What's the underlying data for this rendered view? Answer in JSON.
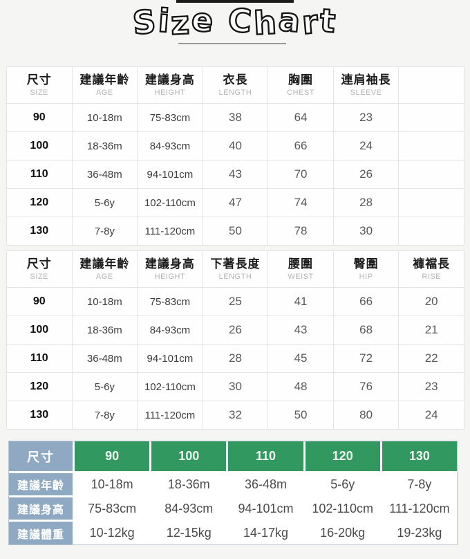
{
  "title": {
    "text": "Size Chart"
  },
  "size_table_top": {
    "headers": [
      {
        "zh": "尺寸",
        "en": "SIZE"
      },
      {
        "zh": "建議年齡",
        "en": "AGE"
      },
      {
        "zh": "建議身高",
        "en": "HEIGHT"
      },
      {
        "zh": "衣長",
        "en": "LENGTH"
      },
      {
        "zh": "胸圍",
        "en": "CHEST"
      },
      {
        "zh": "連肩袖長",
        "en": "SLEEVE"
      },
      {
        "zh": "",
        "en": ""
      }
    ],
    "rows": [
      [
        "90",
        "10-18m",
        "75-83cm",
        "38",
        "64",
        "23",
        ""
      ],
      [
        "100",
        "18-36m",
        "84-93cm",
        "40",
        "66",
        "24",
        ""
      ],
      [
        "110",
        "36-48m",
        "94-101cm",
        "43",
        "70",
        "26",
        ""
      ],
      [
        "120",
        "5-6y",
        "102-110cm",
        "47",
        "74",
        "28",
        ""
      ],
      [
        "130",
        "7-8y",
        "111-120cm",
        "50",
        "78",
        "30",
        ""
      ]
    ]
  },
  "size_table_bottom": {
    "headers": [
      {
        "zh": "尺寸",
        "en": "SIZE"
      },
      {
        "zh": "建議年齡",
        "en": "AGE"
      },
      {
        "zh": "建議身高",
        "en": "HEIGHT"
      },
      {
        "zh": "下著長度",
        "en": "LENGTH"
      },
      {
        "zh": "腰圍",
        "en": "WEIST"
      },
      {
        "zh": "臀圍",
        "en": "HIP"
      },
      {
        "zh": "褲襠長",
        "en": "RISE"
      }
    ],
    "rows": [
      [
        "90",
        "10-18m",
        "75-83cm",
        "25",
        "41",
        "66",
        "20"
      ],
      [
        "100",
        "18-36m",
        "84-93cm",
        "26",
        "43",
        "68",
        "21"
      ],
      [
        "110",
        "36-48m",
        "94-101cm",
        "28",
        "45",
        "72",
        "22"
      ],
      [
        "120",
        "5-6y",
        "102-110cm",
        "30",
        "48",
        "76",
        "23"
      ],
      [
        "130",
        "7-8y",
        "111-120cm",
        "32",
        "50",
        "80",
        "24"
      ]
    ]
  },
  "summary_table": {
    "corner_label": "尺寸",
    "sizes": [
      "90",
      "100",
      "110",
      "120",
      "130"
    ],
    "rows": [
      {
        "label": "建議年齡",
        "values": [
          "10-18m",
          "18-36m",
          "36-48m",
          "5-6y",
          "7-8y"
        ]
      },
      {
        "label": "建議身高",
        "values": [
          "75-83cm",
          "84-93cm",
          "94-101cm",
          "102-110cm",
          "111-120cm"
        ]
      },
      {
        "label": "建議體重",
        "values": [
          "10-12kg",
          "12-15kg",
          "14-17kg",
          "16-20kg",
          "19-23kg"
        ]
      }
    ]
  },
  "colors": {
    "green_header": "#31995f",
    "blue_label": "#8fa9c2",
    "page_bg": "#f5f6f3",
    "grid_line": "#e4e4e6"
  }
}
